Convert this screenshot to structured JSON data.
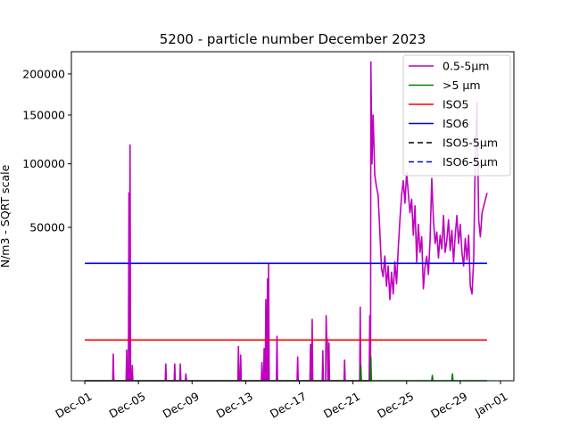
{
  "chart_data": {
    "type": "line",
    "title": "5200 - particle number December 2023",
    "ylabel": "N/m3 - SQRT scale",
    "xlabel": "",
    "y_scale": "sqrt",
    "ylim": [
      0,
      230000
    ],
    "x_range": [
      "2023-11-30T00:00",
      "2024-01-02T00:00"
    ],
    "yticks": [
      50000,
      100000,
      150000,
      200000
    ],
    "ytick_labels": [
      "50000",
      "100000",
      "150000",
      "200000"
    ],
    "xticks": [
      "2023-12-01",
      "2023-12-05",
      "2023-12-09",
      "2023-12-13",
      "2023-12-17",
      "2023-12-21",
      "2023-12-25",
      "2023-12-29",
      "2024-01-01"
    ],
    "xtick_labels": [
      "Dec-01",
      "Dec-05",
      "Dec-09",
      "Dec-13",
      "Dec-17",
      "Dec-21",
      "Dec-25",
      "Dec-29",
      "Jan-01"
    ],
    "legend_position": "top-right",
    "grid": false,
    "series": [
      {
        "name": "0.5-5µm",
        "color": "#bf00bf",
        "style": "solid",
        "points": [
          [
            "2023-12-01T00:00",
            0
          ],
          [
            "2023-12-03T02:00",
            0
          ],
          [
            "2023-12-03T03:00",
            1500
          ],
          [
            "2023-12-03T04:00",
            0
          ],
          [
            "2023-12-04T02:00",
            0
          ],
          [
            "2023-12-04T03:00",
            2000
          ],
          [
            "2023-12-04T04:00",
            0
          ],
          [
            "2023-12-04T06:00",
            0
          ],
          [
            "2023-12-04T07:00",
            75000
          ],
          [
            "2023-12-04T08:00",
            0
          ],
          [
            "2023-12-04T09:00",
            118000
          ],
          [
            "2023-12-04T10:00",
            0
          ],
          [
            "2023-12-04T12:00",
            0
          ],
          [
            "2023-12-04T13:00",
            500
          ],
          [
            "2023-12-04T14:00",
            0
          ],
          [
            "2023-12-07T00:00",
            0
          ],
          [
            "2023-12-07T01:00",
            600
          ],
          [
            "2023-12-07T02:00",
            0
          ],
          [
            "2023-12-07T16:00",
            0
          ],
          [
            "2023-12-07T17:00",
            600
          ],
          [
            "2023-12-07T18:00",
            0
          ],
          [
            "2023-12-08T02:00",
            0
          ],
          [
            "2023-12-08T03:00",
            600
          ],
          [
            "2023-12-08T04:00",
            0
          ],
          [
            "2023-12-08T12:00",
            0
          ],
          [
            "2023-12-08T13:00",
            100
          ],
          [
            "2023-12-08T14:00",
            0
          ],
          [
            "2023-12-12T10:00",
            0
          ],
          [
            "2023-12-12T11:00",
            2500
          ],
          [
            "2023-12-12T12:00",
            0
          ],
          [
            "2023-12-12T14:00",
            0
          ],
          [
            "2023-12-12T15:00",
            1400
          ],
          [
            "2023-12-12T16:00",
            0
          ],
          [
            "2023-12-14T04:00",
            0
          ],
          [
            "2023-12-14T05:00",
            700
          ],
          [
            "2023-12-14T06:00",
            0
          ],
          [
            "2023-12-14T08:00",
            0
          ],
          [
            "2023-12-14T09:00",
            2200
          ],
          [
            "2023-12-14T10:00",
            0
          ],
          [
            "2023-12-14T11:00",
            0
          ],
          [
            "2023-12-14T12:00",
            14000
          ],
          [
            "2023-12-14T13:00",
            0
          ],
          [
            "2023-12-14T14:00",
            0
          ],
          [
            "2023-12-14T15:00",
            22000
          ],
          [
            "2023-12-14T16:00",
            0
          ],
          [
            "2023-12-14T16:30",
            0
          ],
          [
            "2023-12-14T17:00",
            29000
          ],
          [
            "2023-12-14T18:00",
            0
          ],
          [
            "2023-12-15T07:00",
            0
          ],
          [
            "2023-12-15T08:00",
            4200
          ],
          [
            "2023-12-15T09:00",
            0
          ],
          [
            "2023-12-16T20:00",
            0
          ],
          [
            "2023-12-16T21:00",
            1200
          ],
          [
            "2023-12-16T22:00",
            0
          ],
          [
            "2023-12-17T19:00",
            0
          ],
          [
            "2023-12-17T20:00",
            2800
          ],
          [
            "2023-12-17T21:00",
            0
          ],
          [
            "2023-12-17T22:00",
            0
          ],
          [
            "2023-12-17T23:00",
            8000
          ],
          [
            "2023-12-18T00:00",
            0
          ],
          [
            "2023-12-18T17:00",
            0
          ],
          [
            "2023-12-18T18:00",
            1900
          ],
          [
            "2023-12-18T19:00",
            0
          ],
          [
            "2023-12-18T23:00",
            0
          ],
          [
            "2023-12-19T00:00",
            9000
          ],
          [
            "2023-12-19T01:00",
            4000
          ],
          [
            "2023-12-19T02:00",
            3500
          ],
          [
            "2023-12-19T03:00",
            0
          ],
          [
            "2023-12-19T04:00",
            0
          ],
          [
            "2023-12-19T05:00",
            3000
          ],
          [
            "2023-12-19T06:00",
            0
          ],
          [
            "2023-12-20T08:00",
            0
          ],
          [
            "2023-12-20T09:00",
            900
          ],
          [
            "2023-12-20T10:00",
            0
          ],
          [
            "2023-12-21T12:00",
            0
          ],
          [
            "2023-12-21T13:00",
            11500
          ],
          [
            "2023-12-21T14:00",
            0
          ],
          [
            "2023-12-22T05:00",
            0
          ],
          [
            "2023-12-22T06:00",
            9000
          ],
          [
            "2023-12-22T07:00",
            0
          ],
          [
            "2023-12-22T07:30",
            0
          ],
          [
            "2023-12-22T08:00",
            216000
          ],
          [
            "2023-12-22T10:00",
            100000
          ],
          [
            "2023-12-22T12:00",
            150000
          ],
          [
            "2023-12-22T15:00",
            90000
          ],
          [
            "2023-12-22T18:00",
            80000
          ],
          [
            "2023-12-22T21:00",
            73000
          ],
          [
            "2023-12-23T00:00",
            48000
          ],
          [
            "2023-12-23T03:00",
            27000
          ],
          [
            "2023-12-23T06:00",
            23000
          ],
          [
            "2023-12-23T09:00",
            33000
          ],
          [
            "2023-12-23T12:00",
            19000
          ],
          [
            "2023-12-23T15:00",
            28000
          ],
          [
            "2023-12-23T18:00",
            14000
          ],
          [
            "2023-12-23T21:00",
            25000
          ],
          [
            "2023-12-24T00:00",
            16000
          ],
          [
            "2023-12-24T03:00",
            30000
          ],
          [
            "2023-12-24T06:00",
            20000
          ],
          [
            "2023-12-24T09:00",
            37000
          ],
          [
            "2023-12-24T12:00",
            55000
          ],
          [
            "2023-12-24T15:00",
            73000
          ],
          [
            "2023-12-24T18:00",
            85000
          ],
          [
            "2023-12-24T21:00",
            67000
          ],
          [
            "2023-12-25T00:00",
            92000
          ],
          [
            "2023-12-25T03:00",
            75000
          ],
          [
            "2023-12-25T06:00",
            60000
          ],
          [
            "2023-12-25T09:00",
            70000
          ],
          [
            "2023-12-25T12:00",
            45000
          ],
          [
            "2023-12-25T15:00",
            65000
          ],
          [
            "2023-12-25T18:00",
            30000
          ],
          [
            "2023-12-25T21:00",
            52000
          ],
          [
            "2023-12-26T00:00",
            35000
          ],
          [
            "2023-12-26T03:00",
            44000
          ],
          [
            "2023-12-26T06:00",
            18000
          ],
          [
            "2023-12-26T09:00",
            28000
          ],
          [
            "2023-12-26T12:00",
            33000
          ],
          [
            "2023-12-26T15:00",
            24000
          ],
          [
            "2023-12-26T18:00",
            42000
          ],
          [
            "2023-12-26T21:00",
            87000
          ],
          [
            "2023-12-27T00:00",
            55000
          ],
          [
            "2023-12-27T03:00",
            40000
          ],
          [
            "2023-12-27T06:00",
            47000
          ],
          [
            "2023-12-27T09:00",
            32000
          ],
          [
            "2023-12-27T12:00",
            45000
          ],
          [
            "2023-12-27T15:00",
            37000
          ],
          [
            "2023-12-27T18:00",
            58000
          ],
          [
            "2023-12-27T21:00",
            35000
          ],
          [
            "2023-12-28T00:00",
            42000
          ],
          [
            "2023-12-28T03:00",
            55000
          ],
          [
            "2023-12-28T06:00",
            36000
          ],
          [
            "2023-12-28T09:00",
            48000
          ],
          [
            "2023-12-28T12:00",
            30000
          ],
          [
            "2023-12-28T15:00",
            45000
          ],
          [
            "2023-12-28T18:00",
            58000
          ],
          [
            "2023-12-28T21:00",
            40000
          ],
          [
            "2023-12-29T00:00",
            52000
          ],
          [
            "2023-12-29T03:00",
            35000
          ],
          [
            "2023-12-29T06:00",
            28000
          ],
          [
            "2023-12-29T09:00",
            43000
          ],
          [
            "2023-12-29T12:00",
            31000
          ],
          [
            "2023-12-29T15:00",
            45000
          ],
          [
            "2023-12-29T18:00",
            19000
          ],
          [
            "2023-12-29T21:00",
            16000
          ],
          [
            "2023-12-30T00:00",
            31000
          ],
          [
            "2023-12-30T03:00",
            110000
          ],
          [
            "2023-12-30T06:00",
            165000
          ],
          [
            "2023-12-30T09:00",
            55000
          ],
          [
            "2023-12-30T12:00",
            44000
          ],
          [
            "2023-12-30T15:00",
            60000
          ],
          [
            "2023-12-31T00:00",
            75000
          ]
        ]
      },
      {
        "name": ">5 µm",
        "color": "#008000",
        "style": "solid",
        "points": [
          [
            "2023-12-01T00:00",
            0
          ],
          [
            "2023-12-21T13:00",
            0
          ],
          [
            "2023-12-21T14:00",
            500
          ],
          [
            "2023-12-21T15:00",
            0
          ],
          [
            "2023-12-22T07:00",
            0
          ],
          [
            "2023-12-22T08:00",
            1200
          ],
          [
            "2023-12-22T09:00",
            0
          ],
          [
            "2023-12-26T21:00",
            0
          ],
          [
            "2023-12-26T22:00",
            60
          ],
          [
            "2023-12-26T23:00",
            0
          ],
          [
            "2023-12-28T09:00",
            0
          ],
          [
            "2023-12-28T10:00",
            100
          ],
          [
            "2023-12-28T11:00",
            0
          ],
          [
            "2023-12-31T00:00",
            0
          ]
        ]
      },
      {
        "name": "ISO5",
        "color": "#ff0000",
        "style": "solid",
        "points": [
          [
            "2023-12-01T00:00",
            3520
          ],
          [
            "2023-12-31T00:00",
            3520
          ]
        ]
      },
      {
        "name": "ISO6",
        "color": "#0000ff",
        "style": "solid",
        "points": [
          [
            "2023-12-01T00:00",
            29300
          ],
          [
            "2023-12-31T00:00",
            29300
          ]
        ]
      },
      {
        "name": "ISO5-5µm",
        "color": "#000000",
        "style": "dashed",
        "points": []
      },
      {
        "name": "ISO6-5µm",
        "color": "#0000ff",
        "style": "dashed",
        "points": []
      }
    ]
  }
}
